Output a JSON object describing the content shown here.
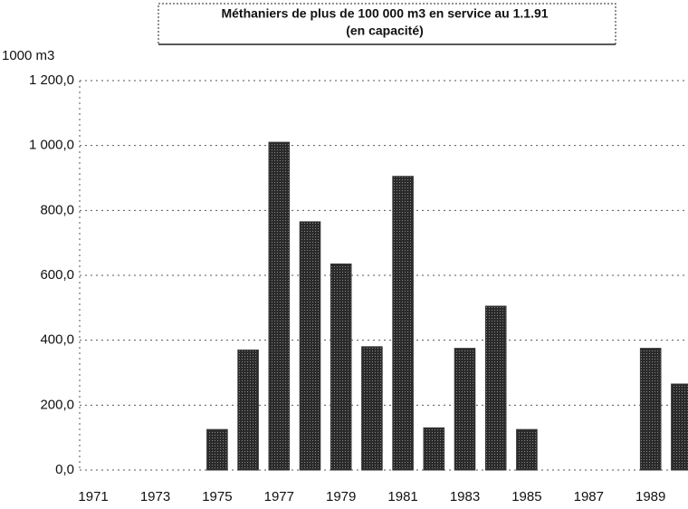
{
  "chart_data": {
    "type": "bar",
    "title": "Méthaniers de plus de 100 000 m3 en service au 1.1.91",
    "subtitle": "(en capacité)",
    "y_label": "1000 m3",
    "categories": [
      "1971",
      null,
      "1973",
      null,
      "1975",
      null,
      "1977",
      null,
      "1979",
      null,
      "1981",
      null,
      "1983",
      null,
      "1985",
      null,
      "1987",
      null,
      "1989",
      null
    ],
    "values": [
      0,
      0,
      0,
      0,
      125,
      370,
      1010,
      765,
      635,
      380,
      905,
      130,
      375,
      505,
      125,
      0,
      0,
      0,
      375,
      265
    ],
    "color": "#353535",
    "ylim": [
      0,
      1200
    ],
    "yticks": [
      {
        "value": 0,
        "label": "0,0"
      },
      {
        "value": 200,
        "label": "200,0"
      },
      {
        "value": 400,
        "label": "400,0"
      },
      {
        "value": 600,
        "label": "600,0"
      },
      {
        "value": 800,
        "label": "800,0"
      },
      {
        "value": 1000,
        "label": "1 000,0"
      },
      {
        "value": 1200,
        "label": "1 200,0"
      }
    ],
    "grid": true
  }
}
